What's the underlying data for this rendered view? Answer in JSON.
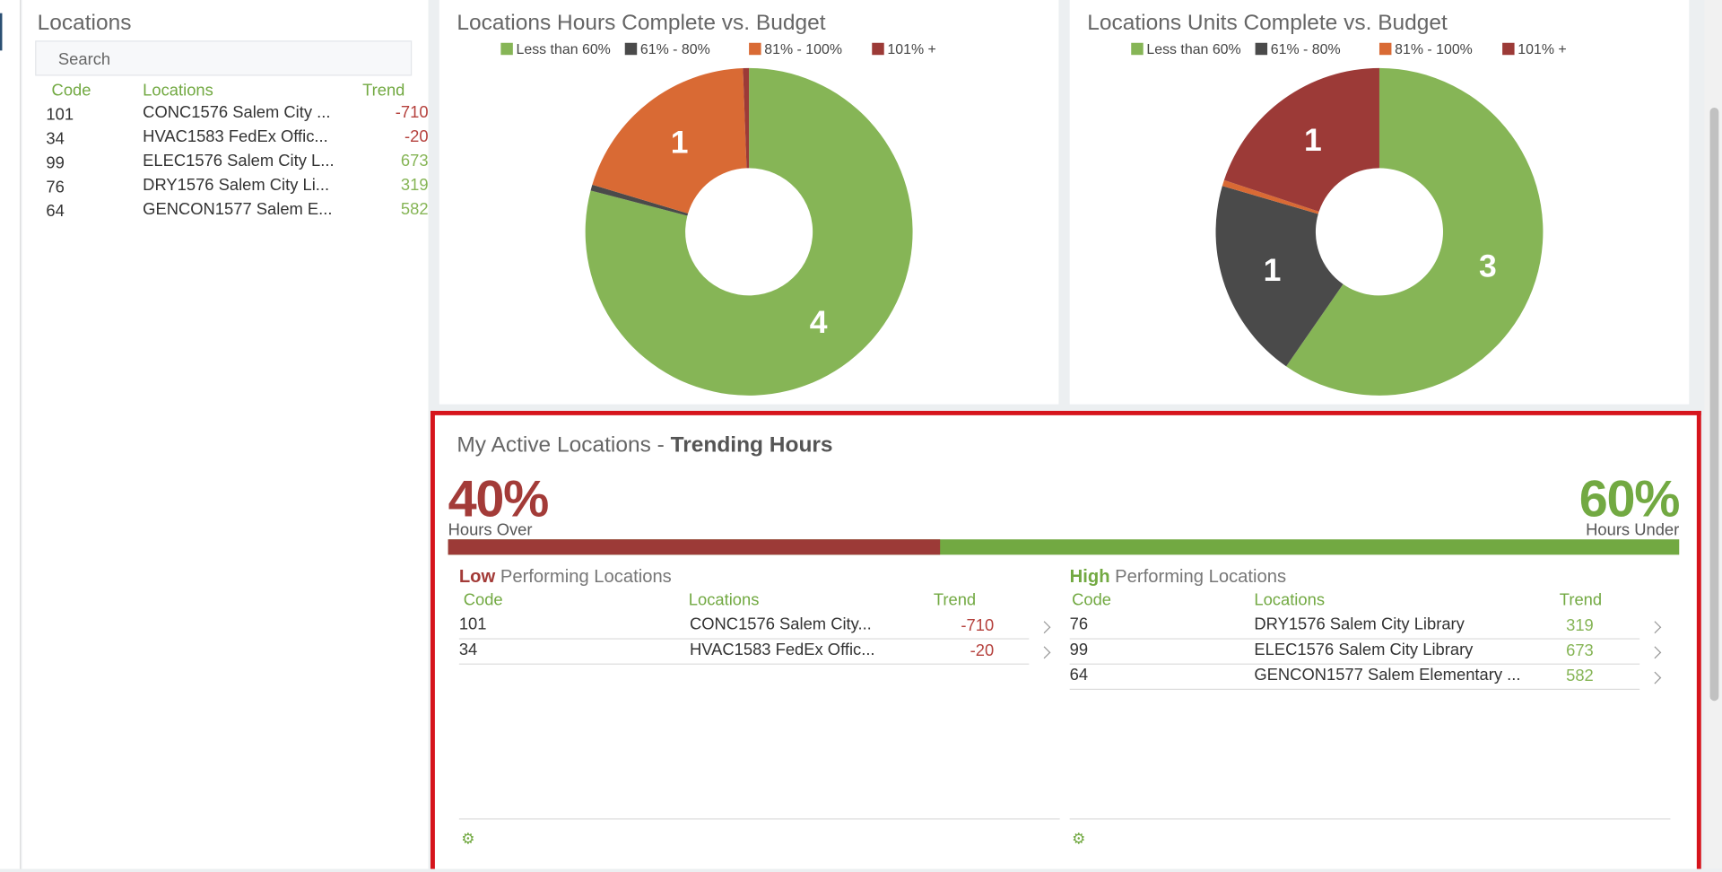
{
  "colors": {
    "green": "#86b556",
    "dark": "#4a4a4a",
    "orange": "#d96a34",
    "red": "#9c3a37",
    "highlight": "#d6141c"
  },
  "locations_panel": {
    "title": "Locations",
    "search_placeholder": "Search",
    "headers": {
      "code": "Code",
      "locations": "Locations",
      "trend": "Trend"
    },
    "rows": [
      {
        "code": "101",
        "location": "CONC1576 Salem City ...",
        "trend": "-710",
        "status": "negative"
      },
      {
        "code": "34",
        "location": "HVAC1583 FedEx Offic...",
        "trend": "-20",
        "status": "negative"
      },
      {
        "code": "99",
        "location": "ELEC1576 Salem City L...",
        "trend": "673",
        "status": "positive"
      },
      {
        "code": "76",
        "location": "DRY1576 Salem City Li...",
        "trend": "319",
        "status": "positive"
      },
      {
        "code": "64",
        "location": "GENCON1577 Salem E...",
        "trend": "582",
        "status": "positive"
      }
    ]
  },
  "legend": [
    "Less than 60%",
    "61% - 80%",
    "81% - 100%",
    "101% +"
  ],
  "hours_chart": {
    "title": "Locations Hours Complete vs. Budget",
    "chart_data": {
      "type": "pie",
      "categories": [
        "Less than 60%",
        "61% - 80%",
        "81% - 100%",
        "101% +"
      ],
      "values": [
        4,
        0.03,
        1,
        0.03
      ],
      "labels": [
        "4",
        "",
        "1",
        ""
      ]
    }
  },
  "units_chart": {
    "title": "Locations Units Complete vs. Budget",
    "chart_data": {
      "type": "pie",
      "categories": [
        "Less than 60%",
        "61% - 80%",
        "81% - 100%",
        "101% +"
      ],
      "values": [
        3,
        1,
        0.03,
        1
      ],
      "labels": [
        "3",
        "1",
        "",
        "1"
      ]
    }
  },
  "trending": {
    "title_light": "My Active Locations - ",
    "title_bold": "Trending Hours",
    "over_pct": "40%",
    "over_label": "Hours Over",
    "under_pct": "60%",
    "under_label": "Hours Under",
    "over_fraction": 0.4,
    "low": {
      "title_bold": "Low",
      "title_rest": " Performing Locations",
      "headers": {
        "code": "Code",
        "locations": "Locations",
        "trend": "Trend"
      },
      "rows": [
        {
          "code": "101",
          "location": "CONC1576 Salem City...",
          "trend": "-710"
        },
        {
          "code": "34",
          "location": "HVAC1583 FedEx Offic...",
          "trend": "-20"
        }
      ]
    },
    "high": {
      "title_bold": "High",
      "title_rest": " Performing Locations",
      "headers": {
        "code": "Code",
        "locations": "Locations",
        "trend": "Trend"
      },
      "rows": [
        {
          "code": "76",
          "location": "DRY1576 Salem City Library",
          "trend": "319"
        },
        {
          "code": "99",
          "location": "ELEC1576 Salem City Library",
          "trend": "673"
        },
        {
          "code": "64",
          "location": "GENCON1577 Salem Elementary ...",
          "trend": "582"
        }
      ]
    }
  }
}
